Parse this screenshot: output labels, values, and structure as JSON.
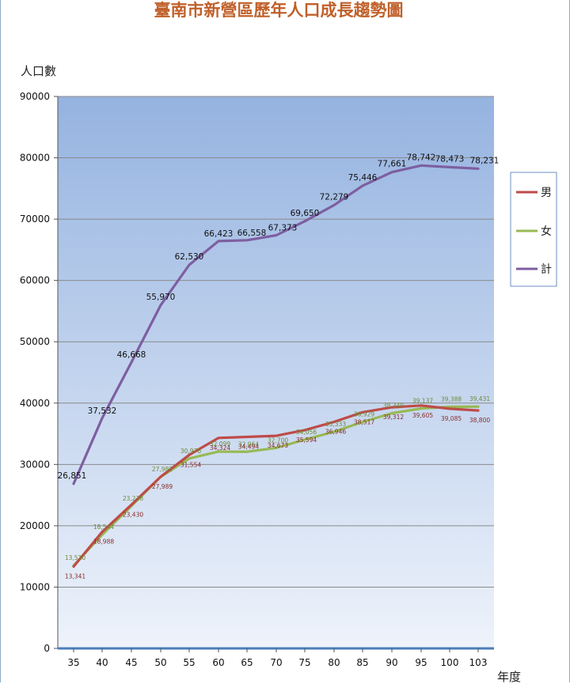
{
  "chart_data": {
    "type": "line",
    "title": "臺南市新營區歷年人口成長趨勢圖",
    "xlabel": "年度",
    "ylabel": "人口數",
    "categories": [
      "35",
      "40",
      "45",
      "50",
      "55",
      "60",
      "65",
      "70",
      "75",
      "80",
      "85",
      "90",
      "95",
      "100",
      "103"
    ],
    "ylim": [
      0,
      90000
    ],
    "yticks": [
      0,
      10000,
      20000,
      30000,
      40000,
      50000,
      60000,
      70000,
      80000,
      90000
    ],
    "grid": true,
    "legend_position": "right",
    "series": [
      {
        "name": "男",
        "color": "#be4b48",
        "values": [
          13341,
          18988,
          23430,
          27989,
          31554,
          34324,
          34494,
          34673,
          35594,
          36946,
          38517,
          39312,
          39605,
          39085,
          38800
        ],
        "labels": [
          "13,341",
          "18,988",
          "23,430",
          "27,989",
          "31,554",
          "34,324",
          "34,494",
          "34,673",
          "35,594",
          "36,946",
          "38,517",
          "39,312",
          "39,605",
          "39,085",
          "38,800"
        ]
      },
      {
        "name": "女",
        "color": "#98b954",
        "values": [
          13510,
          18544,
          23238,
          27981,
          30976,
          32099,
          32064,
          32700,
          34056,
          35333,
          36929,
          38349,
          39137,
          39388,
          39431
        ],
        "labels": [
          "13,510",
          "18,544",
          "23,238",
          "27,981",
          "30,976",
          "32,099",
          "32,064",
          "32,700",
          "34,056",
          "35,333",
          "36,929",
          "38,349",
          "39,137",
          "39,388",
          "39,431"
        ]
      },
      {
        "name": "計",
        "color": "#7d5fa0",
        "values": [
          26851,
          37532,
          46668,
          55970,
          62530,
          66423,
          66558,
          67373,
          69650,
          72279,
          75446,
          77661,
          78742,
          78473,
          78231
        ],
        "labels": [
          "26,851",
          "37,532",
          "46,668",
          "55,970",
          "62,530",
          "66,423",
          "66,558",
          "67,373",
          "69,650",
          "72,279",
          "75,446",
          "77,661",
          "78,742",
          "78,473",
          "78,231"
        ]
      }
    ]
  }
}
